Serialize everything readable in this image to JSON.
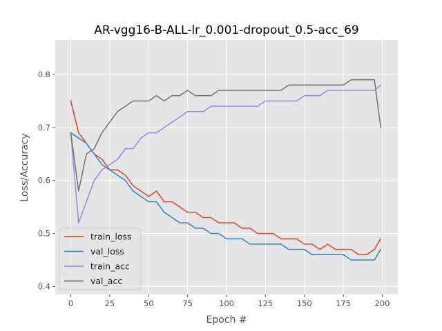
{
  "chart_data": {
    "type": "line",
    "title": "AR-vgg16-B-ALL-lr_0.001-dropout_0.5-acc_69",
    "xlabel": "Epoch #",
    "ylabel": "Loss/Accuracy",
    "xlim": [
      -10,
      210
    ],
    "ylim": [
      0.385,
      0.865
    ],
    "xticks": [
      0,
      25,
      50,
      75,
      100,
      125,
      150,
      175,
      200
    ],
    "yticks": [
      0.4,
      0.5,
      0.6,
      0.7,
      0.8
    ],
    "grid": true,
    "legend_position": "lower-left",
    "background": "#e5e5e5",
    "x": [
      0,
      5,
      10,
      15,
      20,
      25,
      30,
      35,
      40,
      45,
      50,
      55,
      60,
      65,
      70,
      75,
      80,
      85,
      90,
      95,
      100,
      105,
      110,
      115,
      120,
      125,
      130,
      135,
      140,
      145,
      150,
      155,
      160,
      165,
      170,
      175,
      180,
      185,
      190,
      195,
      199
    ],
    "series": [
      {
        "name": "train_loss",
        "color": "#e24a33",
        "values": [
          0.75,
          0.69,
          0.67,
          0.65,
          0.64,
          0.62,
          0.62,
          0.61,
          0.59,
          0.58,
          0.57,
          0.58,
          0.56,
          0.56,
          0.55,
          0.54,
          0.54,
          0.53,
          0.53,
          0.52,
          0.52,
          0.52,
          0.51,
          0.51,
          0.5,
          0.5,
          0.5,
          0.49,
          0.49,
          0.49,
          0.48,
          0.48,
          0.47,
          0.48,
          0.47,
          0.47,
          0.47,
          0.46,
          0.46,
          0.47,
          0.49
        ]
      },
      {
        "name": "val_loss",
        "color": "#348abd",
        "values": [
          0.69,
          0.68,
          0.67,
          0.65,
          0.63,
          0.62,
          0.61,
          0.6,
          0.58,
          0.57,
          0.56,
          0.56,
          0.54,
          0.53,
          0.52,
          0.52,
          0.51,
          0.51,
          0.5,
          0.5,
          0.49,
          0.49,
          0.49,
          0.48,
          0.48,
          0.48,
          0.48,
          0.48,
          0.47,
          0.47,
          0.47,
          0.46,
          0.46,
          0.46,
          0.46,
          0.46,
          0.45,
          0.45,
          0.45,
          0.45,
          0.47
        ]
      },
      {
        "name": "train_acc",
        "color": "#988ed5",
        "values": [
          0.69,
          0.52,
          0.56,
          0.6,
          0.62,
          0.63,
          0.64,
          0.66,
          0.66,
          0.68,
          0.69,
          0.69,
          0.7,
          0.71,
          0.72,
          0.73,
          0.73,
          0.73,
          0.74,
          0.74,
          0.74,
          0.74,
          0.74,
          0.74,
          0.74,
          0.75,
          0.75,
          0.75,
          0.75,
          0.75,
          0.76,
          0.76,
          0.76,
          0.77,
          0.77,
          0.77,
          0.77,
          0.77,
          0.77,
          0.77,
          0.78
        ]
      },
      {
        "name": "val_acc",
        "color": "#777777",
        "values": [
          0.69,
          0.58,
          0.65,
          0.66,
          0.69,
          0.71,
          0.73,
          0.74,
          0.75,
          0.75,
          0.75,
          0.76,
          0.75,
          0.76,
          0.76,
          0.77,
          0.76,
          0.76,
          0.76,
          0.77,
          0.77,
          0.77,
          0.77,
          0.77,
          0.77,
          0.77,
          0.77,
          0.77,
          0.78,
          0.78,
          0.78,
          0.78,
          0.78,
          0.78,
          0.78,
          0.78,
          0.79,
          0.79,
          0.79,
          0.79,
          0.7
        ]
      }
    ]
  }
}
